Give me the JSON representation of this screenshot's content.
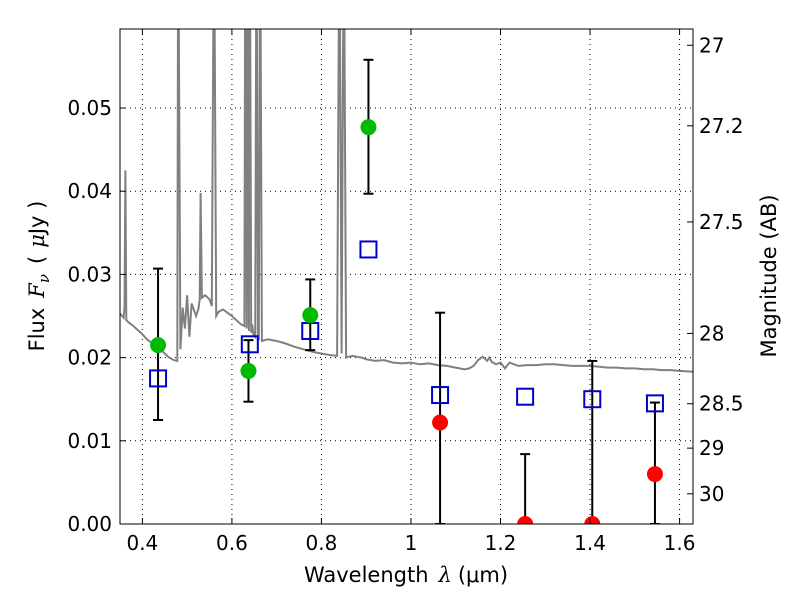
{
  "chart_data": {
    "type": "scatter",
    "xlabel_text": "Wavelength",
    "xlabel_symbol": "λ",
    "xlabel_unit": "(μm)",
    "ylabel_text": "Flux",
    "ylabel_symbol": "F",
    "ylabel_symbol_sub": "ν",
    "ylabel_unit_open": "(",
    "ylabel_unit_mu": "μ",
    "ylabel_unit_rest": "Jy )",
    "y2label": "Magnitude (AB)",
    "xlim": [
      0.35,
      1.63
    ],
    "ylim": [
      0.0,
      0.0595
    ],
    "grid": true,
    "x_ticks": [
      0.4,
      0.6,
      0.8,
      1.0,
      1.2,
      1.4,
      1.6
    ],
    "x_tick_labels": [
      "0.4",
      "0.6",
      "0.8",
      "1",
      "1.2",
      "1.4",
      "1.6"
    ],
    "y_ticks": [
      0.0,
      0.01,
      0.02,
      0.03,
      0.04,
      0.05
    ],
    "y_tick_labels": [
      "0.00",
      "0.01",
      "0.02",
      "0.03",
      "0.04",
      "0.05"
    ],
    "y2_ticks": [
      {
        "mag": 27,
        "label": "27"
      },
      {
        "mag": 27.2,
        "label": "27.2"
      },
      {
        "mag": 27.5,
        "label": "27.5"
      },
      {
        "mag": 28,
        "label": "28"
      },
      {
        "mag": 28.5,
        "label": "28.5"
      },
      {
        "mag": 29,
        "label": "29"
      },
      {
        "mag": 30,
        "label": "30"
      }
    ],
    "colors": {
      "detections": "#00bb00",
      "non_detections": "#ff0000",
      "model": "#0000cc",
      "sed": "#808080"
    },
    "sed_spectrum": [
      [
        0.35,
        0.0253
      ],
      [
        0.355,
        0.025
      ],
      [
        0.358,
        0.0248
      ],
      [
        0.36,
        0.026
      ],
      [
        0.362,
        0.0425
      ],
      [
        0.364,
        0.0245
      ],
      [
        0.37,
        0.0242
      ],
      [
        0.38,
        0.0238
      ],
      [
        0.39,
        0.0233
      ],
      [
        0.4,
        0.0228
      ],
      [
        0.41,
        0.0222
      ],
      [
        0.42,
        0.0218
      ],
      [
        0.43,
        0.0214
      ],
      [
        0.44,
        0.021
      ],
      [
        0.45,
        0.0205
      ],
      [
        0.46,
        0.02
      ],
      [
        0.47,
        0.0197
      ],
      [
        0.478,
        0.0196
      ],
      [
        0.48,
        0.075
      ],
      [
        0.485,
        0.021
      ],
      [
        0.49,
        0.026
      ],
      [
        0.495,
        0.0235
      ],
      [
        0.5,
        0.0275
      ],
      [
        0.505,
        0.0225
      ],
      [
        0.51,
        0.0265
      ],
      [
        0.52,
        0.025
      ],
      [
        0.525,
        0.0258
      ],
      [
        0.528,
        0.027
      ],
      [
        0.53,
        0.0398
      ],
      [
        0.533,
        0.0272
      ],
      [
        0.54,
        0.0275
      ],
      [
        0.55,
        0.027
      ],
      [
        0.555,
        0.0262
      ],
      [
        0.56,
        0.075
      ],
      [
        0.565,
        0.025
      ],
      [
        0.57,
        0.0255
      ],
      [
        0.58,
        0.0258
      ],
      [
        0.59,
        0.0254
      ],
      [
        0.6,
        0.025
      ],
      [
        0.61,
        0.0245
      ],
      [
        0.62,
        0.024
      ],
      [
        0.628,
        0.0238
      ],
      [
        0.63,
        0.075
      ],
      [
        0.633,
        0.0235
      ],
      [
        0.635,
        0.075
      ],
      [
        0.638,
        0.0232
      ],
      [
        0.64,
        0.075
      ],
      [
        0.643,
        0.023
      ],
      [
        0.645,
        0.024
      ],
      [
        0.648,
        0.0228
      ],
      [
        0.652,
        0.0225
      ],
      [
        0.655,
        0.075
      ],
      [
        0.658,
        0.0222
      ],
      [
        0.66,
        0.0222
      ],
      [
        0.663,
        0.075
      ],
      [
        0.667,
        0.022
      ],
      [
        0.68,
        0.0222
      ],
      [
        0.7,
        0.022
      ],
      [
        0.72,
        0.0217
      ],
      [
        0.74,
        0.0213
      ],
      [
        0.76,
        0.021
      ],
      [
        0.78,
        0.0207
      ],
      [
        0.8,
        0.0205
      ],
      [
        0.82,
        0.0203
      ],
      [
        0.835,
        0.0202
      ],
      [
        0.84,
        0.075
      ],
      [
        0.845,
        0.0205
      ],
      [
        0.85,
        0.075
      ],
      [
        0.855,
        0.02
      ],
      [
        0.86,
        0.0201
      ],
      [
        0.87,
        0.0202
      ],
      [
        0.88,
        0.0201
      ],
      [
        0.89,
        0.02
      ],
      [
        0.9,
        0.0198
      ],
      [
        0.92,
        0.0196
      ],
      [
        0.94,
        0.0197
      ],
      [
        0.96,
        0.0194
      ],
      [
        0.98,
        0.0193
      ],
      [
        1.0,
        0.0194
      ],
      [
        1.02,
        0.0192
      ],
      [
        1.04,
        0.0193
      ],
      [
        1.06,
        0.0191
      ],
      [
        1.08,
        0.019
      ],
      [
        1.1,
        0.0188
      ],
      [
        1.12,
        0.0186
      ],
      [
        1.13,
        0.0187
      ],
      [
        1.14,
        0.019
      ],
      [
        1.15,
        0.0197
      ],
      [
        1.16,
        0.0201
      ],
      [
        1.17,
        0.0196
      ],
      [
        1.175,
        0.02
      ],
      [
        1.18,
        0.0195
      ],
      [
        1.19,
        0.0192
      ],
      [
        1.2,
        0.0194
      ],
      [
        1.21,
        0.0187
      ],
      [
        1.22,
        0.0194
      ],
      [
        1.23,
        0.0192
      ],
      [
        1.24,
        0.019
      ],
      [
        1.26,
        0.0191
      ],
      [
        1.28,
        0.0191
      ],
      [
        1.3,
        0.0192
      ],
      [
        1.32,
        0.0192
      ],
      [
        1.34,
        0.0191
      ],
      [
        1.36,
        0.019
      ],
      [
        1.38,
        0.019
      ],
      [
        1.4,
        0.019
      ],
      [
        1.42,
        0.0189
      ],
      [
        1.44,
        0.0188
      ],
      [
        1.46,
        0.0188
      ],
      [
        1.48,
        0.0187
      ],
      [
        1.5,
        0.0187
      ],
      [
        1.52,
        0.0186
      ],
      [
        1.54,
        0.0186
      ],
      [
        1.56,
        0.0185
      ],
      [
        1.58,
        0.0185
      ],
      [
        1.6,
        0.0184
      ],
      [
        1.63,
        0.0183
      ]
    ],
    "detections": [
      {
        "x": 0.435,
        "y": 0.0215,
        "err_low": 0.0125,
        "err_high": 0.0307
      },
      {
        "x": 0.637,
        "y": 0.0184,
        "err_low": 0.0147,
        "err_high": 0.0221
      },
      {
        "x": 0.775,
        "y": 0.0251,
        "err_low": 0.0209,
        "err_high": 0.0294
      },
      {
        "x": 0.905,
        "y": 0.0477,
        "err_low": 0.0397,
        "err_high": 0.0558
      }
    ],
    "non_detections": [
      {
        "x": 1.065,
        "y": 0.0122,
        "err_low": 0.0,
        "err_high": 0.0254
      },
      {
        "x": 1.255,
        "y": 0.0,
        "err_low": 0.0,
        "err_high": 0.0084
      },
      {
        "x": 1.405,
        "y": 0.0,
        "err_low": 0.0,
        "err_high": 0.0196
      },
      {
        "x": 1.545,
        "y": 0.006,
        "err_low": 0.0,
        "err_high": 0.0146
      }
    ],
    "model_points": [
      {
        "x": 0.435,
        "y": 0.0175
      },
      {
        "x": 0.64,
        "y": 0.0216
      },
      {
        "x": 0.775,
        "y": 0.0232
      },
      {
        "x": 0.905,
        "y": 0.033
      },
      {
        "x": 1.065,
        "y": 0.0155
      },
      {
        "x": 1.255,
        "y": 0.0153
      },
      {
        "x": 1.405,
        "y": 0.015
      },
      {
        "x": 1.545,
        "y": 0.0145
      }
    ]
  }
}
